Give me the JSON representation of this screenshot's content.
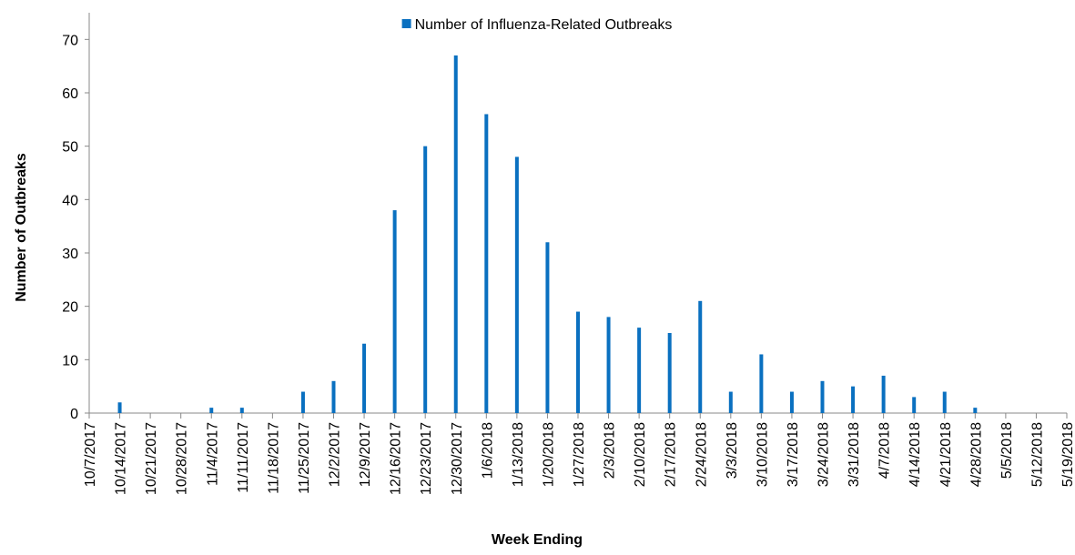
{
  "chart_data": {
    "type": "bar",
    "legend_label": "Number of Influenza-Related Outbreaks",
    "x_label": "Week Ending",
    "y_label": "Number of Outbreaks",
    "legend_position": "top",
    "categories": [
      "10/7/2017",
      "10/14/2017",
      "10/21/2017",
      "10/28/2017",
      "11/4/2017",
      "11/11/2017",
      "11/18/2017",
      "11/25/2017",
      "12/2/2017",
      "12/9/2017",
      "12/16/2017",
      "12/23/2017",
      "12/30/2017",
      "1/6/2018",
      "1/13/2018",
      "1/20/2018",
      "1/27/2018",
      "2/3/2018",
      "2/10/2018",
      "2/17/2018",
      "2/24/2018",
      "3/3/2018",
      "3/10/2018",
      "3/17/2018",
      "3/24/2018",
      "3/31/2018",
      "4/7/2018",
      "4/14/2018",
      "4/21/2018",
      "4/28/2018",
      "5/5/2018",
      "5/12/2018",
      "5/19/2018"
    ],
    "values": [
      0,
      2,
      0,
      0,
      1,
      1,
      0,
      4,
      6,
      13,
      38,
      50,
      67,
      56,
      48,
      32,
      19,
      18,
      16,
      15,
      21,
      4,
      11,
      4,
      6,
      5,
      7,
      3,
      4,
      1,
      0,
      0,
      0
    ],
    "color": "#0a70c0",
    "ylim": [
      0,
      75
    ],
    "yticks": [
      0,
      10,
      20,
      30,
      40,
      50,
      60,
      70
    ],
    "grid": false
  }
}
